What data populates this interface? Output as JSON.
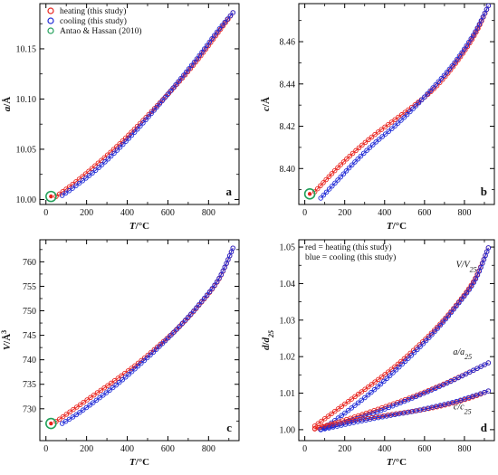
{
  "chart_data": [
    {
      "type": "scatter",
      "panel_label": "a",
      "xlabel": "T/°C",
      "ylabel": "a/Å",
      "xlim": [
        -30,
        950
      ],
      "ylim": [
        9.995,
        10.195
      ],
      "xticks": [
        0,
        200,
        400,
        600,
        800
      ],
      "xtick_labels": [
        "0",
        "200",
        "400",
        "600",
        "800"
      ],
      "yticks": [
        10.0,
        10.05,
        10.1,
        10.15
      ],
      "ytick_labels": [
        "10.00",
        "10.05",
        "10.10",
        "10.15"
      ],
      "legend": {
        "position": "top-left",
        "entries": [
          "heating (this study)",
          "cooling (this study)",
          "Antao & Hassan (2010)"
        ]
      },
      "series": [
        {
          "name": "heating (this study)",
          "color": "#e8231d",
          "marker": "circle-open",
          "x": [
            50,
            150,
            250,
            350,
            450,
            550,
            650,
            750,
            850,
            920
          ],
          "y": [
            10.003,
            10.018,
            10.035,
            10.053,
            10.073,
            10.094,
            10.116,
            10.14,
            10.167,
            10.186
          ]
        },
        {
          "name": "cooling (this study)",
          "color": "#1f2ad6",
          "marker": "circle-open",
          "x": [
            80,
            150,
            250,
            350,
            450,
            550,
            650,
            750,
            850,
            920
          ],
          "y": [
            10.004,
            10.014,
            10.03,
            10.049,
            10.07,
            10.093,
            10.117,
            10.142,
            10.169,
            10.186
          ]
        },
        {
          "name": "Antao & Hassan (2010)",
          "color": "#22a05a",
          "marker": "circle-large",
          "x": [
            25
          ],
          "y": [
            10.003
          ]
        }
      ]
    },
    {
      "type": "scatter",
      "panel_label": "b",
      "xlabel": "T/°C",
      "ylabel": "c/Å",
      "xlim": [
        -30,
        950
      ],
      "ylim": [
        8.383,
        8.478
      ],
      "xticks": [
        0,
        200,
        400,
        600,
        800
      ],
      "xtick_labels": [
        "0",
        "200",
        "400",
        "600",
        "800"
      ],
      "yticks": [
        8.4,
        8.42,
        8.44,
        8.46
      ],
      "ytick_labels": [
        "8.40",
        "8.42",
        "8.44",
        "8.46"
      ],
      "series": [
        {
          "name": "heating (this study)",
          "color": "#e8231d",
          "marker": "circle-open",
          "x": [
            50,
            150,
            250,
            350,
            450,
            550,
            650,
            750,
            850,
            920
          ],
          "y": [
            8.389,
            8.399,
            8.408,
            8.416,
            8.423,
            8.43,
            8.438,
            8.449,
            8.463,
            8.477
          ]
        },
        {
          "name": "cooling (this study)",
          "color": "#1f2ad6",
          "marker": "circle-open",
          "x": [
            80,
            150,
            250,
            350,
            450,
            550,
            650,
            750,
            850,
            920
          ],
          "y": [
            8.386,
            8.393,
            8.403,
            8.412,
            8.42,
            8.429,
            8.439,
            8.45,
            8.464,
            8.477
          ]
        },
        {
          "name": "Antao & Hassan (2010)",
          "color": "#22a05a",
          "marker": "circle-large",
          "x": [
            25
          ],
          "y": [
            8.388
          ]
        }
      ]
    },
    {
      "type": "scatter",
      "panel_label": "c",
      "xlabel": "T/°C",
      "ylabel": "V/Å³",
      "xlim": [
        -30,
        950
      ],
      "ylim": [
        723.5,
        764.5
      ],
      "xticks": [
        0,
        200,
        400,
        600,
        800
      ],
      "xtick_labels": [
        "0",
        "200",
        "400",
        "600",
        "800"
      ],
      "yticks": [
        730,
        735,
        740,
        745,
        750,
        755,
        760
      ],
      "ytick_labels": [
        "730",
        "735",
        "740",
        "745",
        "750",
        "755",
        "760"
      ],
      "series": [
        {
          "name": "heating (this study)",
          "color": "#e8231d",
          "marker": "circle-open",
          "x": [
            50,
            150,
            250,
            350,
            450,
            550,
            650,
            750,
            850,
            920
          ],
          "y": [
            727.4,
            730.3,
            733.2,
            736.1,
            739.2,
            742.7,
            746.5,
            751.0,
            756.4,
            762.8
          ]
        },
        {
          "name": "cooling (this study)",
          "color": "#1f2ad6",
          "marker": "circle-open",
          "x": [
            80,
            150,
            250,
            350,
            450,
            550,
            650,
            750,
            850,
            920
          ],
          "y": [
            727.0,
            728.8,
            731.8,
            735.0,
            738.6,
            742.4,
            746.5,
            751.1,
            756.5,
            762.8
          ]
        },
        {
          "name": "Antao & Hassan (2010)",
          "color": "#22a05a",
          "marker": "circle-large",
          "x": [
            25
          ],
          "y": [
            727.0
          ]
        }
      ]
    },
    {
      "type": "scatter",
      "panel_label": "d",
      "xlabel": "T/°C",
      "ylabel": "d/d₂₅",
      "xlim": [
        -30,
        950
      ],
      "ylim": [
        0.997,
        1.052
      ],
      "xticks": [
        0,
        200,
        400,
        600,
        800
      ],
      "xtick_labels": [
        "0",
        "200",
        "400",
        "600",
        "800"
      ],
      "yticks": [
        1.0,
        1.01,
        1.02,
        1.03,
        1.04,
        1.05
      ],
      "ytick_labels": [
        "1.00",
        "1.01",
        "1.02",
        "1.03",
        "1.04",
        "1.05"
      ],
      "legend": {
        "position": "top-left",
        "entries": [
          "red = heating  (this study)",
          "blue = cooling  (this study)"
        ]
      },
      "annotations": [
        {
          "text": "V/V",
          "sub": "25",
          "x": 810,
          "y": 1.0445
        },
        {
          "text": "a/a",
          "sub": "25",
          "x": 790,
          "y": 1.0205
        },
        {
          "text": "c/c",
          "sub": "25",
          "x": 790,
          "y": 1.0055
        }
      ],
      "series": [
        {
          "name": "V/V25 heating",
          "color": "#e8231d",
          "marker": "circle-open",
          "x": [
            50,
            150,
            250,
            350,
            450,
            550,
            650,
            750,
            850,
            920
          ],
          "y": [
            1.001,
            1.005,
            1.009,
            1.013,
            1.0172,
            1.022,
            1.0273,
            1.0335,
            1.041,
            1.0498
          ]
        },
        {
          "name": "V/V25 cooling",
          "color": "#1f2ad6",
          "marker": "circle-open",
          "x": [
            80,
            150,
            250,
            350,
            450,
            550,
            650,
            750,
            850,
            920
          ],
          "y": [
            1.0,
            1.0025,
            1.0066,
            1.011,
            1.016,
            1.0212,
            1.0268,
            1.0332,
            1.0406,
            1.0498
          ]
        },
        {
          "name": "a/a25 heating",
          "color": "#e8231d",
          "marker": "circle-open",
          "x": [
            50,
            150,
            250,
            350,
            450,
            550,
            650,
            750,
            850,
            920
          ],
          "y": [
            1.0003,
            1.0018,
            1.0035,
            1.0053,
            1.0072,
            1.0092,
            1.0114,
            1.0138,
            1.0164,
            1.0183
          ]
        },
        {
          "name": "a/a25 cooling",
          "color": "#1f2ad6",
          "marker": "circle-open",
          "x": [
            80,
            150,
            250,
            350,
            450,
            550,
            650,
            750,
            850,
            920
          ],
          "y": [
            1.0001,
            1.0012,
            1.0028,
            1.0046,
            1.0067,
            1.0089,
            1.0112,
            1.0137,
            1.0164,
            1.0183
          ]
        },
        {
          "name": "c/c25 heating",
          "color": "#e8231d",
          "marker": "circle-open",
          "x": [
            50,
            150,
            250,
            350,
            450,
            550,
            650,
            750,
            850,
            920
          ],
          "y": [
            1.0002,
            1.0014,
            1.0025,
            1.0034,
            1.0043,
            1.0051,
            1.0061,
            1.0074,
            1.0091,
            1.0106
          ]
        },
        {
          "name": "c/c25 cooling",
          "color": "#1f2ad6",
          "marker": "circle-open",
          "x": [
            80,
            150,
            250,
            350,
            450,
            550,
            650,
            750,
            850,
            920
          ],
          "y": [
            1.0,
            1.0008,
            1.002,
            1.0031,
            1.0041,
            1.0051,
            1.0063,
            1.0076,
            1.0093,
            1.0106
          ]
        }
      ]
    }
  ]
}
